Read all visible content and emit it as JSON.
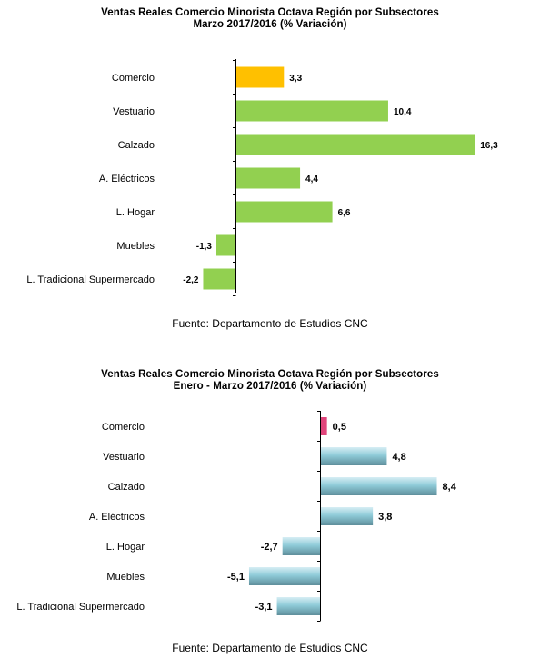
{
  "charts": [
    {
      "title_line1": "Ventas Reales Comercio Minorista Octava Región por Subsectores",
      "title_line2": "Marzo  2017/2016 (% Variación)",
      "source": "Fuente: Departamento de Estudios CNC",
      "colors": {
        "highlight": "#ffc000",
        "bars": "#92d050"
      }
    },
    {
      "title_line1": "Ventas Reales Comercio Minorista Octava Región por Subsectores",
      "title_line2": "Enero - Marzo 2017/2016 (% Variación)",
      "source": "Fuente: Departamento de Estudios CNC",
      "colors": {
        "highlight": "#e0457b",
        "bars": "#8fcbd8",
        "bars_dark": "#5f8f9c"
      }
    }
  ],
  "chart_data": [
    {
      "type": "bar",
      "orientation": "horizontal",
      "categories": [
        "Comercio",
        "Vestuario",
        "Calzado",
        "A. Eléctricos",
        "L. Hogar",
        "Muebles",
        "L. Tradicional Supermercado"
      ],
      "values": [
        3.3,
        10.4,
        16.3,
        4.4,
        6.6,
        -1.3,
        -2.2
      ],
      "labels": [
        "3,3",
        "10,4",
        "16,3",
        "4,4",
        "6,6",
        "-1,3",
        "-2,2"
      ],
      "title": "Ventas Reales Comercio Minorista Octava Región por Subsectores",
      "subtitle": "Marzo  2017/2016 (% Variación)",
      "grid": false,
      "legend": "none"
    },
    {
      "type": "bar",
      "orientation": "horizontal",
      "categories": [
        "Comercio",
        "Vestuario",
        "Calzado",
        "A. Eléctricos",
        "L. Hogar",
        "Muebles",
        "L. Tradicional Supermercado"
      ],
      "values": [
        0.5,
        4.8,
        8.4,
        3.8,
        -2.7,
        -5.1,
        -3.1
      ],
      "labels": [
        "0,5",
        "4,8",
        "8,4",
        "3,8",
        "-2,7",
        "-5,1",
        "-3,1"
      ],
      "title": "Ventas Reales Comercio Minorista Octava Región por Subsectores",
      "subtitle": "Enero - Marzo 2017/2016 (% Variación)",
      "grid": false,
      "legend": "none"
    }
  ]
}
